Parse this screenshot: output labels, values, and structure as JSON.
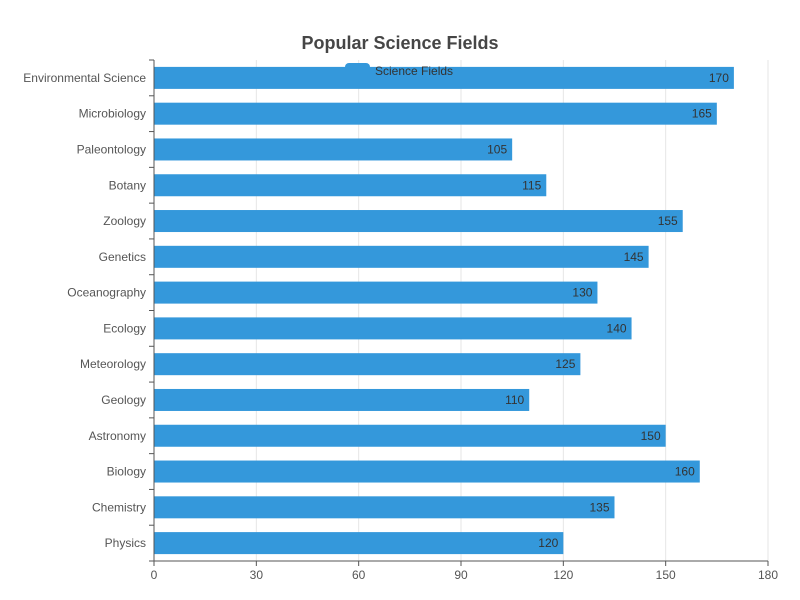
{
  "chart_data": {
    "type": "bar",
    "orientation": "horizontal",
    "title": "Popular Science Fields",
    "categories": [
      "Environmental Science",
      "Microbiology",
      "Paleontology",
      "Botany",
      "Zoology",
      "Genetics",
      "Oceanography",
      "Ecology",
      "Meteorology",
      "Geology",
      "Astronomy",
      "Biology",
      "Chemistry",
      "Physics"
    ],
    "series": [
      {
        "name": "Science Fields",
        "color": "#3498db",
        "values": [
          170,
          165,
          105,
          115,
          155,
          145,
          130,
          140,
          125,
          110,
          150,
          160,
          135,
          120
        ]
      }
    ],
    "xlim": [
      0,
      180
    ],
    "xticks": [
      0,
      30,
      60,
      90,
      120,
      150,
      180
    ],
    "grid": true,
    "legend_position": "top-center",
    "data_labels": true
  }
}
